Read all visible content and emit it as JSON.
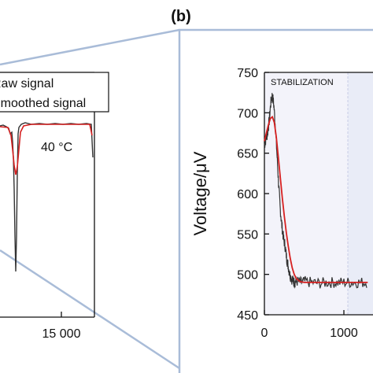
{
  "chart_data": [
    {
      "type": "line",
      "series": [
        {
          "name": "Raw signal",
          "color": "#333333"
        },
        {
          "name": "Smoothed signal",
          "color": "#d62020"
        }
      ],
      "annotation": "40 °C",
      "x_tick_labels": [
        "15 000"
      ]
    },
    {
      "type": "line",
      "panel_label": "(b)",
      "ylabel": "Voltage/μV",
      "ylim": [
        450,
        750
      ],
      "y_ticks": [
        450,
        500,
        550,
        600,
        650,
        700,
        750
      ],
      "xlim": [
        0,
        1300
      ],
      "x_ticks": [
        0,
        1000
      ],
      "region_label": "STABILIZATION",
      "series": [
        {
          "name": "Raw signal",
          "color": "#333333",
          "x": [
            0,
            20,
            40,
            60,
            80,
            100,
            120,
            140,
            160,
            180,
            200,
            220,
            240,
            260,
            280,
            300,
            320,
            340,
            360,
            380,
            400,
            450,
            500,
            600,
            700,
            800,
            900,
            1000,
            1100,
            1200,
            1300
          ],
          "y": [
            660,
            668,
            675,
            690,
            712,
            722,
            708,
            680,
            645,
            610,
            580,
            560,
            545,
            535,
            520,
            510,
            500,
            495,
            492,
            490,
            492,
            490,
            491,
            490,
            489,
            490,
            490,
            490,
            490,
            490,
            490
          ]
        },
        {
          "name": "Smoothed signal",
          "color": "#d62020",
          "x": [
            0,
            25,
            50,
            75,
            100,
            125,
            150,
            175,
            200,
            225,
            250,
            275,
            300,
            325,
            350,
            375,
            400,
            450,
            500,
            600,
            700,
            800,
            900,
            1000,
            1100,
            1200,
            1300
          ],
          "y": [
            665,
            675,
            685,
            693,
            695,
            688,
            670,
            645,
            620,
            595,
            572,
            552,
            535,
            520,
            508,
            500,
            495,
            491,
            490,
            490,
            490,
            490,
            490,
            490,
            490,
            490,
            490
          ]
        }
      ]
    }
  ]
}
